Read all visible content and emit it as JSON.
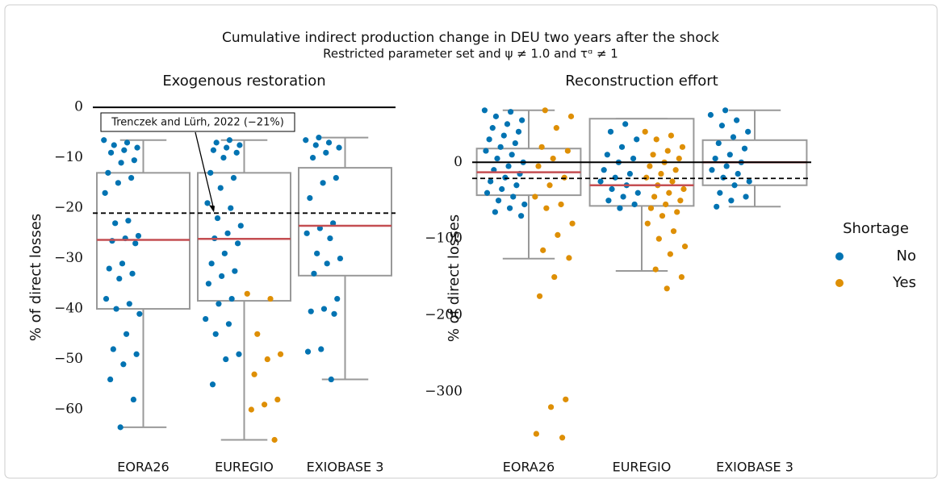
{
  "chart_data": [
    {
      "type": "box",
      "title": "Cumulative indirect production change in DEU two years after the shock",
      "subtitle": "Restricted parameter set and ψ ≠ 1.0 and τᵅ ≠ 1",
      "axes_title": "Exogenous restoration",
      "ylabel": "% of direct losses",
      "categories": [
        "EORA26",
        "EUREGIO",
        "EXIOBASE 3"
      ],
      "ylim": [
        -68,
        0.5
      ],
      "yticks": [
        0,
        {
          "value": -10,
          "label": "−10"
        },
        {
          "value": -20,
          "label": "−20"
        },
        {
          "value": -30,
          "label": "−30"
        },
        {
          "value": -40,
          "label": "−40"
        },
        {
          "value": -50,
          "label": "−50"
        },
        {
          "value": -60,
          "label": "−60"
        }
      ],
      "boxes": [
        {
          "whislo": -63.5,
          "q1": -40,
          "median": -26.3,
          "q3": -13,
          "whishi": -6.5
        },
        {
          "whislo": -66,
          "q1": -38.4,
          "median": -26.1,
          "q3": -13,
          "whishi": -6.5
        },
        {
          "whislo": -54,
          "q1": -33.4,
          "median": -23.5,
          "q3": -12,
          "whishi": -6
        }
      ],
      "reference_line": -21,
      "annotation": "Trenczek and Lürh, 2022 (−21%)",
      "series": [
        {
          "name": "No",
          "color": "#0173b2",
          "values": [
            [
              -6.5,
              -7,
              -7.5,
              -8,
              -8.5,
              -9,
              -10.5,
              -11,
              -13,
              -14,
              -15,
              -17,
              -22.5,
              -23,
              -25.5,
              -26,
              -26.5,
              -27,
              -31,
              -32,
              -33,
              -34,
              -38,
              -39,
              -40,
              -41,
              -45,
              -48,
              -49,
              -51,
              -54,
              -58,
              -63.5
            ],
            [
              -6.5,
              -7,
              -7.5,
              -8,
              -8.5,
              -9,
              -10,
              -13,
              -14,
              -16,
              -19,
              -20,
              -22,
              -23.5,
              -25,
              -26,
              -27,
              -29,
              -31,
              -32.5,
              -33.5,
              -35,
              -38,
              -39,
              -42,
              -43,
              -45,
              -49,
              -50,
              -55
            ],
            [
              -6,
              -6.5,
              -7,
              -7.5,
              -8,
              -9,
              -10,
              -14,
              -15,
              -18,
              -23,
              -24,
              -25,
              -26,
              -29,
              -30,
              -31,
              -33,
              -38,
              -40,
              -40.5,
              -41,
              -48,
              -48.5,
              -54
            ]
          ]
        },
        {
          "name": "Yes",
          "color": "#de8f05",
          "values": [
            [],
            [
              -37,
              -38,
              -45,
              -49,
              -50,
              -53,
              -58,
              -59,
              -60,
              -66
            ],
            []
          ]
        }
      ]
    },
    {
      "type": "box",
      "axes_title": "Reconstruction effort",
      "ylabel": "% of direct losses",
      "legend_title": "Shortage",
      "categories": [
        "EORA26",
        "EUREGIO",
        "EXIOBASE 3"
      ],
      "ylim": [
        -375,
        72
      ],
      "yticks": [
        0,
        {
          "value": -100,
          "label": "−100"
        },
        {
          "value": -200,
          "label": "−200"
        },
        {
          "value": -300,
          "label": "−300"
        }
      ],
      "boxes": [
        {
          "whislo": -126,
          "q1": -43,
          "median": -13,
          "q3": 18,
          "whishi": 68
        },
        {
          "whislo": -142,
          "q1": -57,
          "median": -30,
          "q3": 57,
          "whishi": 57
        },
        {
          "whislo": -58,
          "q1": -30,
          "median": 0,
          "q3": 29,
          "whishi": 68
        }
      ],
      "reference_line": -21,
      "series": [
        {
          "name": "No",
          "color": "#0173b2",
          "values": [
            [
              68,
              66,
              60,
              55,
              50,
              45,
              40,
              35,
              30,
              25,
              20,
              15,
              10,
              5,
              0,
              -5,
              -10,
              -15,
              -20,
              -25,
              -30,
              -35,
              -40,
              -45,
              -50,
              -55,
              -60,
              -65,
              -70
            ],
            [
              50,
              40,
              30,
              20,
              10,
              5,
              0,
              -10,
              -15,
              -20,
              -25,
              -30,
              -35,
              -40,
              -45,
              -50,
              -55,
              -60
            ],
            [
              68,
              62,
              55,
              48,
              40,
              33,
              25,
              18,
              10,
              5,
              0,
              -5,
              -10,
              -15,
              -20,
              -25,
              -30,
              -40,
              -45,
              -50,
              -58
            ]
          ]
        },
        {
          "name": "Yes",
          "color": "#de8f05",
          "values": [
            [
              68,
              60,
              45,
              20,
              15,
              5,
              -5,
              -20,
              -30,
              -45,
              -55,
              -60,
              -80,
              -95,
              -115,
              -125,
              -150,
              -175,
              -310,
              -320,
              -355,
              -360
            ],
            [
              40,
              35,
              30,
              20,
              15,
              10,
              5,
              0,
              -5,
              -10,
              -15,
              -20,
              -25,
              -30,
              -35,
              -40,
              -45,
              -50,
              -55,
              -60,
              -65,
              -70,
              -80,
              -90,
              -100,
              -110,
              -120,
              -140,
              -150,
              -165
            ],
            []
          ]
        }
      ]
    }
  ]
}
